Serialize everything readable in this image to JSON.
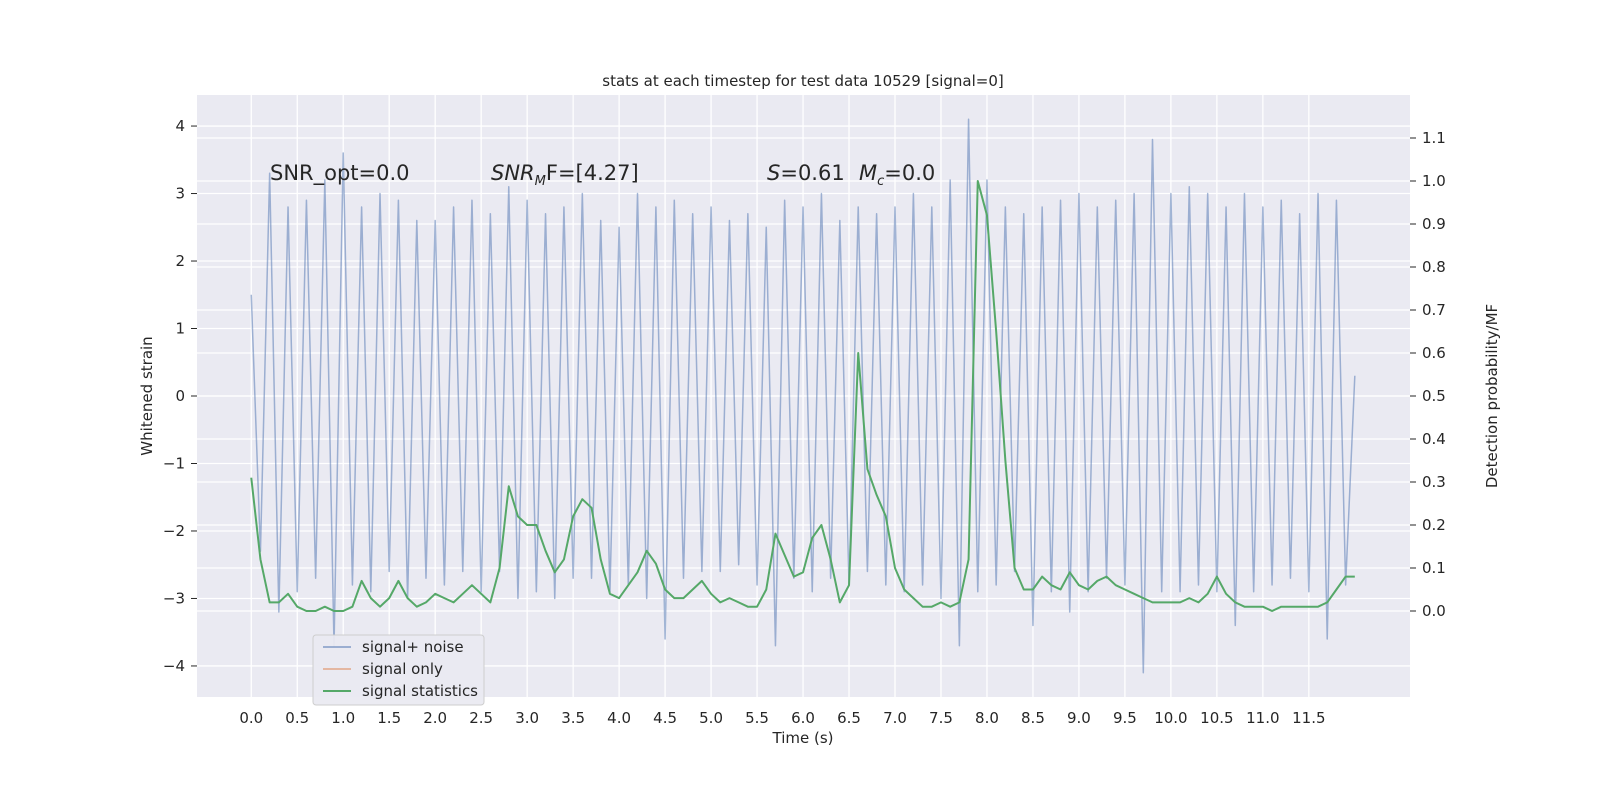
{
  "chart_data": {
    "type": "line",
    "title": "stats at each timestep for test data 10529 [signal=0]",
    "xlabel": "Time (s)",
    "ylabel": "Whitened strain",
    "y2label": "Detection probability/MF",
    "annotations": {
      "snr_opt": "SNR_opt=0.0",
      "snr_mf": {
        "base": "SNR",
        "sub": "M",
        "rest": "F=[4.27]"
      },
      "s": {
        "base": "S",
        "rest": "=0.61"
      },
      "mc": {
        "base": "M",
        "sub": "c",
        "rest": "=0.0"
      }
    },
    "x": [
      0,
      0.1,
      0.2,
      0.3,
      0.4,
      0.5,
      0.6,
      0.7,
      0.8,
      0.9,
      1,
      1.1,
      1.2,
      1.3,
      1.4,
      1.5,
      1.6,
      1.7,
      1.8,
      1.9,
      2,
      2.1,
      2.2,
      2.3,
      2.4,
      2.5,
      2.6,
      2.7,
      2.8,
      2.9,
      3,
      3.1,
      3.2,
      3.3,
      3.4,
      3.5,
      3.6,
      3.7,
      3.8,
      3.9,
      4,
      4.1,
      4.2,
      4.3,
      4.4,
      4.5,
      4.6,
      4.7,
      4.8,
      4.9,
      5,
      5.1,
      5.2,
      5.3,
      5.4,
      5.5,
      5.6,
      5.7,
      5.8,
      5.9,
      6,
      6.1,
      6.2,
      6.3,
      6.4,
      6.5,
      6.6,
      6.7,
      6.8,
      6.9,
      7,
      7.1,
      7.2,
      7.3,
      7.4,
      7.5,
      7.6,
      7.7,
      7.8,
      7.9,
      8,
      8.1,
      8.2,
      8.3,
      8.4,
      8.5,
      8.6,
      8.7,
      8.8,
      8.9,
      9,
      9.1,
      9.2,
      9.3,
      9.4,
      9.5,
      9.6,
      9.7,
      9.8,
      9.9,
      10,
      10.1,
      10.2,
      10.3,
      10.4,
      10.5,
      10.6,
      10.7,
      10.8,
      10.9,
      11,
      11.1,
      11.2,
      11.3,
      11.4,
      11.5,
      11.6,
      11.7,
      11.8,
      11.9,
      12
    ],
    "series": [
      {
        "name": "signal+ noise",
        "color": "#4c72b0",
        "alpha": 0.5,
        "values": [
          1.5,
          -2.3,
          3.3,
          -3.2,
          2.8,
          -2.9,
          2.9,
          -2.7,
          3.2,
          -3.7,
          3.6,
          -2.8,
          2.8,
          -2.9,
          3.0,
          -2.6,
          2.9,
          -3.0,
          2.6,
          -2.7,
          2.6,
          -2.8,
          2.8,
          -2.6,
          2.9,
          -2.9,
          2.7,
          -2.6,
          3.1,
          -3.0,
          2.9,
          -2.9,
          2.7,
          -3.0,
          2.8,
          -2.7,
          3.0,
          -2.7,
          2.6,
          -2.9,
          2.5,
          -2.8,
          3.0,
          -3.0,
          2.8,
          -3.6,
          2.9,
          -2.7,
          2.7,
          -2.6,
          2.8,
          -2.6,
          2.6,
          -2.5,
          2.7,
          -2.8,
          2.5,
          -3.7,
          2.9,
          -2.7,
          2.8,
          -2.9,
          3.0,
          -2.7,
          2.6,
          -2.8,
          2.8,
          -2.6,
          2.7,
          -2.8,
          2.8,
          -2.9,
          3.0,
          -2.8,
          2.8,
          -3.0,
          3.2,
          -3.7,
          4.1,
          -2.9,
          3.2,
          -2.8,
          2.8,
          -2.6,
          2.7,
          -3.4,
          2.8,
          -2.9,
          2.9,
          -3.2,
          3.0,
          -2.9,
          2.8,
          -2.7,
          2.9,
          -2.8,
          3.0,
          -4.1,
          3.8,
          -2.9,
          3.0,
          -2.9,
          3.1,
          -2.8,
          3.0,
          -2.9,
          2.8,
          -3.4,
          3.0,
          -2.9,
          2.8,
          -2.8,
          2.9,
          -2.7,
          2.7,
          -2.9,
          3.0,
          -3.6,
          2.9,
          -2.8,
          0.3
        ]
      },
      {
        "name": "signal only",
        "color": "#dd8452",
        "alpha": 0.5,
        "values": [
          null,
          null,
          null,
          null,
          null,
          null,
          null,
          null,
          null,
          null,
          null,
          null,
          null,
          null,
          null,
          null,
          null,
          null,
          null,
          null,
          null,
          null,
          null,
          null,
          null,
          null,
          null,
          null,
          null,
          null,
          null,
          null,
          null,
          null,
          null,
          null,
          null,
          null,
          null,
          null,
          null,
          null,
          null,
          null,
          null,
          null,
          null,
          null,
          null,
          null,
          null,
          null,
          null,
          null,
          null,
          null,
          null,
          null,
          null,
          null,
          null,
          null,
          null,
          null,
          null,
          null,
          null,
          null,
          null,
          null,
          null,
          null,
          null,
          null,
          null,
          null,
          null,
          null,
          null,
          null,
          null,
          null,
          null,
          null,
          null,
          null,
          null,
          null,
          null,
          null,
          null,
          null,
          null,
          null,
          null,
          null,
          null,
          null,
          null,
          null,
          null,
          null,
          null,
          null,
          null,
          null,
          null,
          null,
          null,
          null,
          null,
          null,
          null,
          null,
          null,
          null,
          null,
          null,
          null,
          null,
          null
        ]
      },
      {
        "name": "signal statistics",
        "color": "#55a868",
        "axis": "y2",
        "values": [
          0.31,
          0.12,
          0.02,
          0.02,
          0.04,
          0.01,
          0,
          0,
          0.01,
          0,
          0,
          0.01,
          0.07,
          0.03,
          0.01,
          0.03,
          0.07,
          0.03,
          0.01,
          0.02,
          0.04,
          0.03,
          0.02,
          0.04,
          0.06,
          0.04,
          0.02,
          0.1,
          0.29,
          0.22,
          0.2,
          0.2,
          0.14,
          0.09,
          0.12,
          0.22,
          0.26,
          0.24,
          0.12,
          0.04,
          0.03,
          0.06,
          0.09,
          0.14,
          0.11,
          0.05,
          0.03,
          0.03,
          0.05,
          0.07,
          0.04,
          0.02,
          0.03,
          0.02,
          0.01,
          0.01,
          0.05,
          0.18,
          0.13,
          0.08,
          0.09,
          0.17,
          0.2,
          0.12,
          0.02,
          0.06,
          0.6,
          0.33,
          0.27,
          0.22,
          0.1,
          0.05,
          0.03,
          0.01,
          0.01,
          0.02,
          0.01,
          0.02,
          0.12,
          1.0,
          0.92,
          0.65,
          0.35,
          0.1,
          0.05,
          0.05,
          0.08,
          0.06,
          0.05,
          0.09,
          0.06,
          0.05,
          0.07,
          0.08,
          0.06,
          0.05,
          0.04,
          0.03,
          0.02,
          0.02,
          0.02,
          0.02,
          0.03,
          0.02,
          0.04,
          0.08,
          0.04,
          0.02,
          0.01,
          0.01,
          0.01,
          0,
          0.01,
          0.01,
          0.01,
          0.01,
          0.01,
          0.02,
          0.05,
          0.08,
          0.08
        ]
      }
    ],
    "xlim": [
      -0.59,
      12.6
    ],
    "xticks": [
      {
        "value": 0,
        "label": "0.0"
      },
      0.5,
      {
        "value": 1,
        "label": "1.0"
      },
      1.5,
      {
        "value": 2,
        "label": "2.0"
      },
      2.5,
      {
        "value": 3,
        "label": "3.0"
      },
      3.5,
      {
        "value": 4,
        "label": "4.0"
      },
      4.5,
      {
        "value": 5,
        "label": "5.0"
      },
      5.5,
      {
        "value": 6,
        "label": "6.0"
      },
      6.5,
      {
        "value": 7,
        "label": "7.0"
      },
      7.5,
      {
        "value": 8,
        "label": "8.0"
      },
      8.5,
      {
        "value": 9,
        "label": "9.0"
      },
      9.5,
      {
        "value": 10,
        "label": "10.0"
      },
      10.5,
      {
        "value": 11,
        "label": "11.0"
      },
      11.5
    ],
    "ylim": [
      -4.46,
      4.46
    ],
    "yticks": [
      {
        "value": -4,
        "label": "−4"
      },
      {
        "value": -3,
        "label": "−3"
      },
      {
        "value": -2,
        "label": "−2"
      },
      {
        "value": -1,
        "label": "−1"
      },
      0,
      1,
      2,
      3,
      4
    ],
    "y2lim": [
      -0.2,
      1.2
    ],
    "y2ticks": [
      {
        "value": 0,
        "label": "0.0"
      },
      0.1,
      0.2,
      0.3,
      0.4,
      0.5,
      0.6,
      0.7,
      0.8,
      0.9,
      {
        "value": 1,
        "label": "1.0"
      },
      1.1
    ],
    "grid": true,
    "legend": "lower left"
  }
}
